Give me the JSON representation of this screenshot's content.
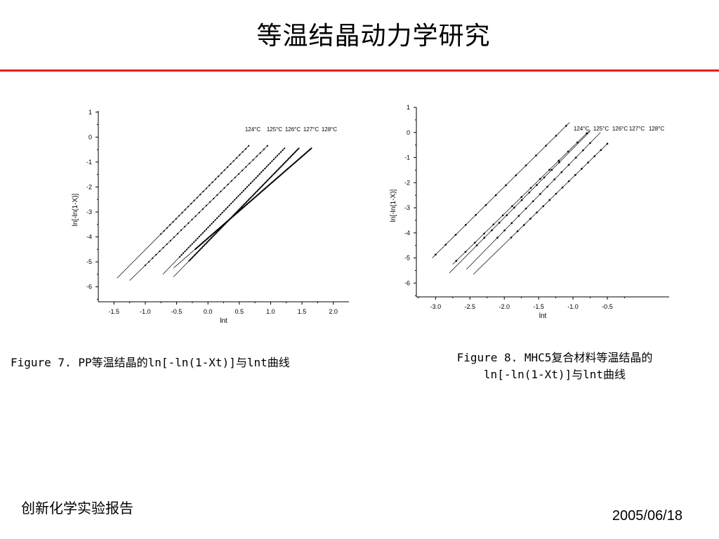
{
  "slide": {
    "title": "等温结晶动力学研究",
    "accent_color": "#e02020",
    "footer_left": "创新化学实验报告",
    "footer_date": "2005/06/18"
  },
  "captions": {
    "left": "Figure 7. PP等温结晶的ln[-ln(1-Xt)]与lnt曲线",
    "right_line1": "Figure 8. MHC5复合材料等温结晶的",
    "right_line2": "ln[-ln(1-Xt)]与lnt曲线"
  },
  "chart_data": [
    {
      "type": "scatter",
      "xlabel": "lnt",
      "ylabel": "ln[-ln(1-X)]",
      "xlim": [
        -1.75,
        2.25
      ],
      "ylim": [
        -6.6,
        1.05
      ],
      "xticks": [
        -1.5,
        -1.0,
        -0.5,
        0.0,
        0.5,
        1.0,
        1.5,
        2.0
      ],
      "xtick_labels": [
        "-1.5",
        "-1.0",
        "-0.5",
        "0.0",
        "0.5",
        "1.0",
        "1.5",
        "2.0"
      ],
      "yticks": [
        1,
        0,
        -1,
        -2,
        -3,
        -4,
        -5,
        -6
      ],
      "ytick_labels": [
        "1",
        "0",
        "-1",
        "-2",
        "-3",
        "-4",
        "-5",
        "-6"
      ],
      "grid": false,
      "series": [
        {
          "name": "124°C",
          "fit": [
            [
              -1.45,
              -5.65
            ],
            [
              0.65,
              -0.35
            ]
          ],
          "points": {
            "x_from": -0.75,
            "x_to": 0.65,
            "n": 30
          }
        },
        {
          "name": "125°C",
          "fit": [
            [
              -1.25,
              -5.75
            ],
            [
              0.95,
              -0.35
            ]
          ],
          "points": {
            "x_from": -1.0,
            "x_to": 0.95,
            "n": 35
          }
        },
        {
          "name": "126°C",
          "fit": [
            [
              -0.72,
              -5.5
            ],
            [
              1.22,
              -0.45
            ]
          ],
          "points": {
            "x_from": -0.45,
            "x_to": 1.22,
            "n": 60
          }
        },
        {
          "name": "127°C",
          "fit": [
            [
              -0.55,
              -5.6
            ],
            [
              1.45,
              -0.45
            ]
          ],
          "points": {
            "x_from": -0.3,
            "x_to": 1.45,
            "n": 110
          }
        },
        {
          "name": "128°C",
          "fit": [
            [
              -0.55,
              -5.25
            ],
            [
              1.65,
              -0.45
            ]
          ],
          "points": {
            "x_from": -0.2,
            "x_to": 1.65,
            "n": 140
          }
        }
      ]
    },
    {
      "type": "scatter",
      "xlabel": "lnt",
      "ylabel": "ln[-ln(1-X)]",
      "xlim": [
        -3.28,
        0.4
      ],
      "ylim": [
        -6.55,
        1.0
      ],
      "xticks": [
        -3.0,
        -2.5,
        -2.0,
        -1.5,
        -1.0,
        -0.5
      ],
      "xtick_labels": [
        "-3.0",
        "-2.5",
        "-2.0",
        "-1.5",
        "-1.0",
        "-0.5"
      ],
      "yticks": [
        1,
        0,
        -1,
        -2,
        -3,
        -4,
        -5,
        -6
      ],
      "ytick_labels": [
        "1",
        "0",
        "-1",
        "-2",
        "-3",
        "-4",
        "-5",
        "-6"
      ],
      "grid": false,
      "series": [
        {
          "name": "124°C",
          "fit": [
            [
              -3.05,
              -5.0
            ],
            [
              -1.05,
              0.4
            ]
          ],
          "points": {
            "x_from": -3.0,
            "x_to": -1.1,
            "n": 14
          }
        },
        {
          "name": "125°C",
          "fit": [
            [
              -2.75,
              -5.25
            ],
            [
              -0.75,
              0.1
            ]
          ],
          "points": {
            "x_from": -2.7,
            "x_to": -0.8,
            "n": 15
          }
        },
        {
          "name": "126°C",
          "fit": [
            [
              -2.8,
              -5.6
            ],
            [
              -0.75,
              0.05
            ]
          ],
          "points": {
            "x_from": -2.4,
            "x_to": -1.2,
            "n": 12
          }
        },
        {
          "name": "127°C",
          "fit": [
            [
              -2.55,
              -5.45
            ],
            [
              -0.6,
              0.0
            ]
          ],
          "points": {
            "x_from": -2.1,
            "x_to": -0.75,
            "n": 14
          }
        },
        {
          "name": "128°C",
          "fit": [
            [
              -2.45,
              -5.65
            ],
            [
              -0.5,
              -0.45
            ]
          ],
          "points": {
            "x_from": -1.9,
            "x_to": -0.5,
            "n": 16
          }
        }
      ]
    }
  ]
}
